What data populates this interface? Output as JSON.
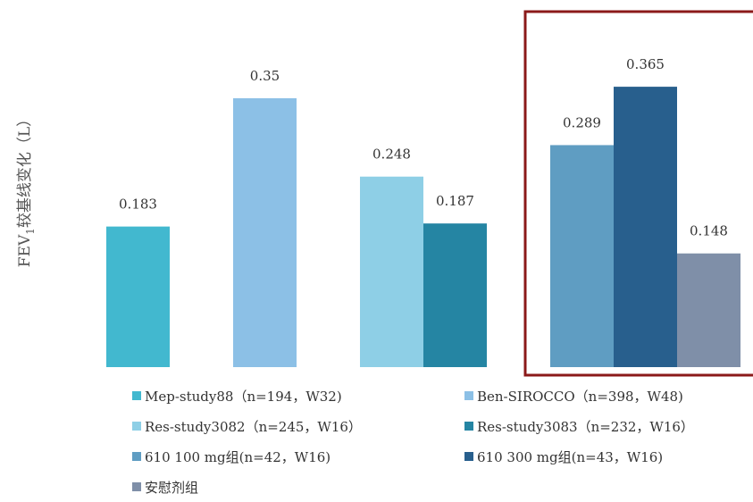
{
  "chart_data": {
    "type": "bar",
    "ylabel": "FEV1较基线变化（L）",
    "ylabel_parts": {
      "pre": "FEV",
      "sub": "1",
      "post": "较基线变化（L）"
    },
    "ylim": [
      0,
      0.4
    ],
    "grid": false,
    "legend_position": "bottom",
    "highlight_box": {
      "series": [
        "610 100 mg组(n=42，W16)",
        "610 300 mg组(n=43，W16)",
        "安慰剂组"
      ],
      "color": "#8b1a1a"
    },
    "series": [
      {
        "name": "Mep-study88（n=194，W32)",
        "value": 0.183,
        "label": "0.183",
        "color": "#42b8cf"
      },
      {
        "name": "Ben-SIROCCO（n=398，W48)",
        "value": 0.35,
        "label": "0.35",
        "color": "#8cc0e6"
      },
      {
        "name": "Res-study3082（n=245，W16）",
        "value": 0.248,
        "label": "0.248",
        "color": "#8ecfe6"
      },
      {
        "name": "Res-study3083（n=232，W16）",
        "value": 0.187,
        "label": "0.187",
        "color": "#2585a3"
      },
      {
        "name": "610 100 mg组(n=42，W16)",
        "value": 0.289,
        "label": "0.289",
        "color": "#5f9dc2"
      },
      {
        "name": "610 300 mg组(n=43，W16)",
        "value": 0.365,
        "label": "0.365",
        "color": "#285f8d"
      },
      {
        "name": "安慰剂组",
        "value": 0.148,
        "label": "0.148",
        "color": "#7f8fa8"
      }
    ]
  }
}
